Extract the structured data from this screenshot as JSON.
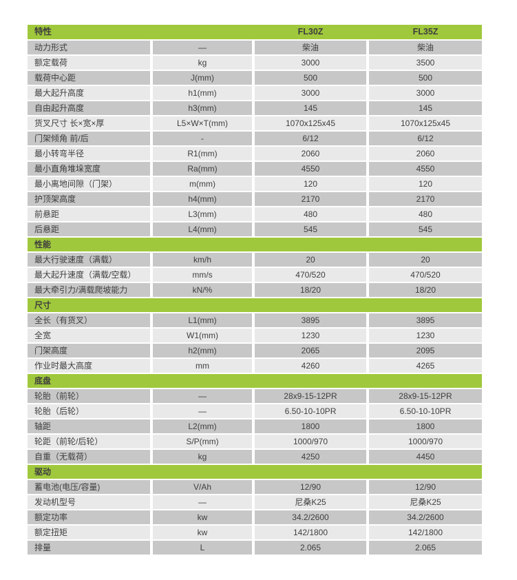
{
  "colors": {
    "green": "#a0c83c",
    "row_dark": "#c7c7c7",
    "row_light": "#e9e9e9",
    "text": "#3e3e3e"
  },
  "table": {
    "header": {
      "feature": "特性",
      "unit": "",
      "model1": "FL30Z",
      "model2": "FL35Z"
    },
    "sections": [
      {
        "title": null,
        "rows": [
          {
            "label": "动力形式",
            "unit": "—",
            "fl30z": "柴油",
            "fl35z": "柴油"
          },
          {
            "label": "额定载荷",
            "unit": "kg",
            "fl30z": "3000",
            "fl35z": "3500"
          },
          {
            "label": "载荷中心距",
            "unit": "J(mm)",
            "fl30z": "500",
            "fl35z": "500"
          },
          {
            "label": "最大起升高度",
            "unit": "h1(mm)",
            "fl30z": "3000",
            "fl35z": "3000"
          },
          {
            "label": "自由起升高度",
            "unit": "h3(mm)",
            "fl30z": "145",
            "fl35z": "145"
          },
          {
            "label": "货叉尺寸 长×宽×厚",
            "unit": "L5×W×T(mm)",
            "fl30z": "1070x125x45",
            "fl35z": "1070x125x45"
          },
          {
            "label": "门架倾角 前/后",
            "unit": "-",
            "fl30z": "6/12",
            "fl35z": "6/12"
          },
          {
            "label": "最小转弯半径",
            "unit": "R1(mm)",
            "fl30z": "2060",
            "fl35z": "2060"
          },
          {
            "label": "最小直角堆垛宽度",
            "unit": "Ra(mm)",
            "fl30z": "4550",
            "fl35z": "4550"
          },
          {
            "label": "最小离地间隙（门架）",
            "unit": "m(mm)",
            "fl30z": "120",
            "fl35z": "120"
          },
          {
            "label": "护顶架高度",
            "unit": "h4(mm)",
            "fl30z": "2170",
            "fl35z": "2170"
          },
          {
            "label": "前悬距",
            "unit": "L3(mm)",
            "fl30z": "480",
            "fl35z": "480"
          },
          {
            "label": "后悬距",
            "unit": "L4(mm)",
            "fl30z": "545",
            "fl35z": "545"
          }
        ]
      },
      {
        "title": "性能",
        "rows": [
          {
            "label": "最大行驶速度（满载）",
            "unit": "km/h",
            "fl30z": "20",
            "fl35z": "20"
          },
          {
            "label": "最大起升速度（满载/空载）",
            "unit": "mm/s",
            "fl30z": "470/520",
            "fl35z": "470/520"
          },
          {
            "label": "最大牵引力/满载爬坡能力",
            "unit": "kN/%",
            "fl30z": "18/20",
            "fl35z": "18/20"
          }
        ]
      },
      {
        "title": "尺寸",
        "rows": [
          {
            "label": "全长（有货叉）",
            "unit": "L1(mm)",
            "fl30z": "3895",
            "fl35z": "3895"
          },
          {
            "label": "全宽",
            "unit": "W1(mm)",
            "fl30z": "1230",
            "fl35z": "1230"
          },
          {
            "label": "门架高度",
            "unit": "h2(mm)",
            "fl30z": "2065",
            "fl35z": "2095"
          },
          {
            "label": "作业时最大高度",
            "unit": "mm",
            "fl30z": "4260",
            "fl35z": "4265"
          }
        ]
      },
      {
        "title": "底盘",
        "rows": [
          {
            "label": "轮胎（前轮）",
            "unit": "—",
            "fl30z": "28x9-15-12PR",
            "fl35z": "28x9-15-12PR"
          },
          {
            "label": "轮胎（后轮）",
            "unit": "—",
            "fl30z": "6.50-10-10PR",
            "fl35z": "6.50-10-10PR"
          },
          {
            "label": "轴距",
            "unit": "L2(mm)",
            "fl30z": "1800",
            "fl35z": "1800"
          },
          {
            "label": "轮距（前轮/后轮）",
            "unit": "S/P(mm)",
            "fl30z": "1000/970",
            "fl35z": "1000/970"
          },
          {
            "label": "自重（无载荷）",
            "unit": "kg",
            "fl30z": "4250",
            "fl35z": "4450"
          }
        ]
      },
      {
        "title": "驱动",
        "rows": [
          {
            "label": "蓄电池(电压/容量)",
            "unit": "V/Ah",
            "fl30z": "12/90",
            "fl35z": "12/90"
          },
          {
            "label": "发动机型号",
            "unit": "—",
            "fl30z": "尼桑K25",
            "fl35z": "尼桑K25"
          },
          {
            "label": "额定功率",
            "unit": "kw",
            "fl30z": "34.2/2600",
            "fl35z": "34.2/2600"
          },
          {
            "label": "额定扭矩",
            "unit": "kw",
            "fl30z": "142/1800",
            "fl35z": "142/1800"
          },
          {
            "label": "排量",
            "unit": "L",
            "fl30z": "2.065",
            "fl35z": "2.065"
          }
        ]
      }
    ]
  }
}
